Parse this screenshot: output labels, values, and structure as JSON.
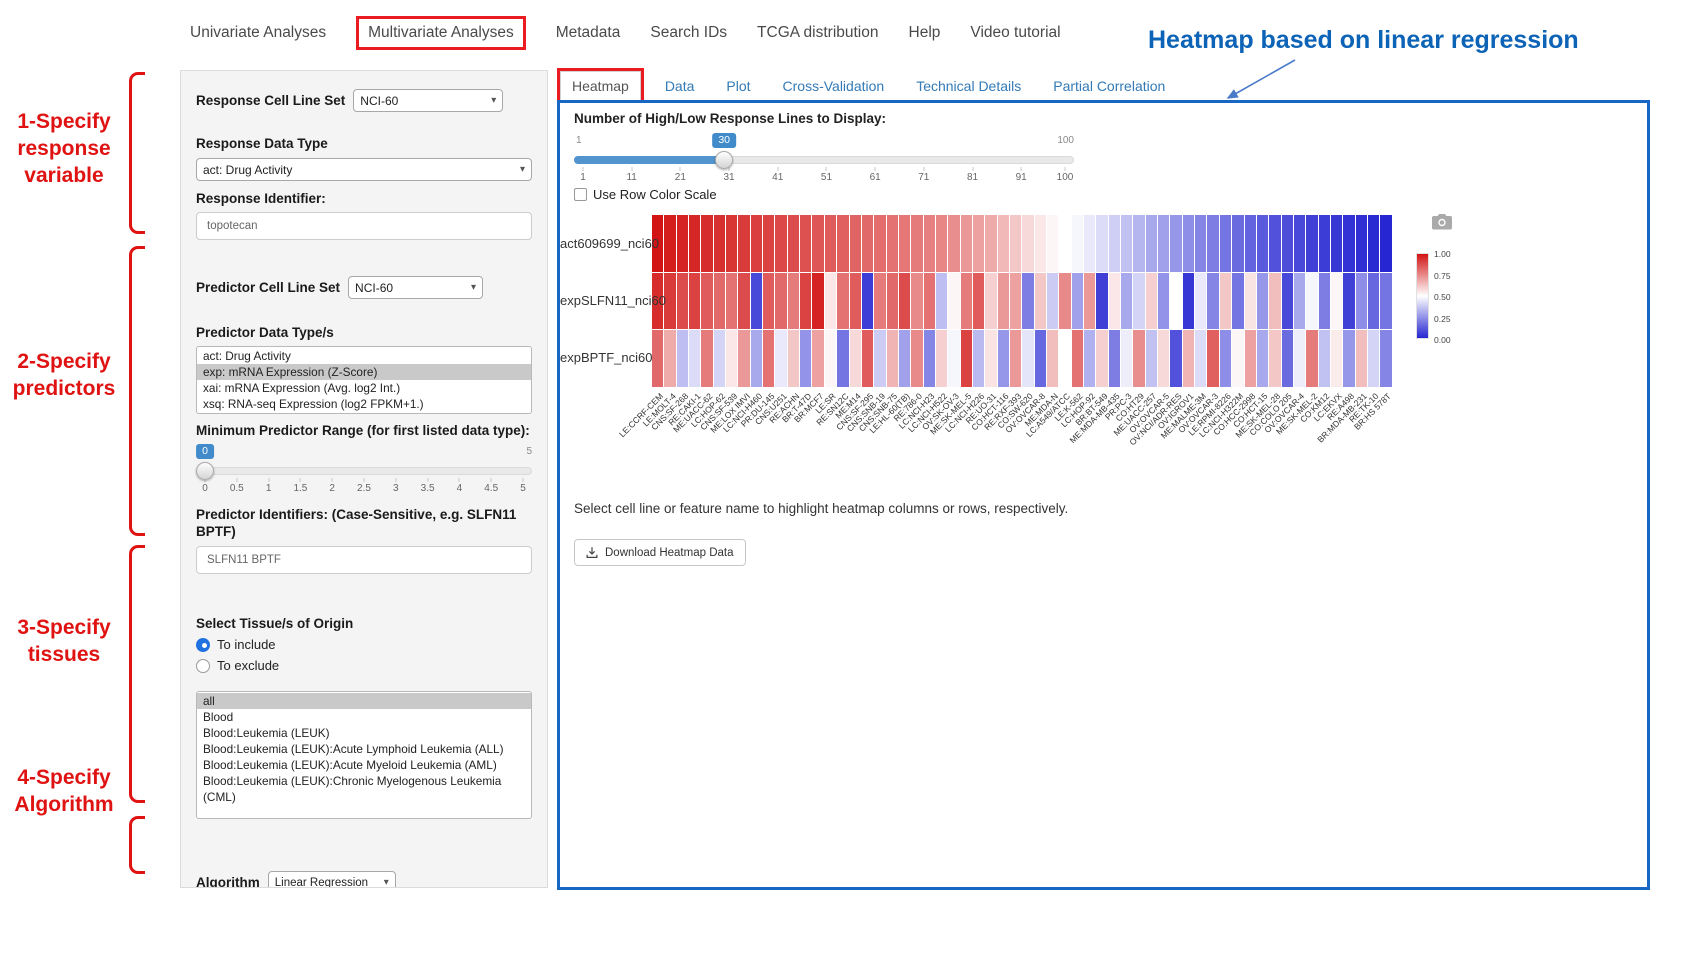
{
  "colors": {
    "panel_border_blue": "#1668c4",
    "annotation_red": "#e01313",
    "link_blue": "#337ab7",
    "slider_blue": "#428bca"
  },
  "nav": {
    "items": [
      {
        "label": "Univariate Analyses",
        "highlighted": false
      },
      {
        "label": "Multivariate Analyses",
        "highlighted": true
      },
      {
        "label": "Metadata",
        "highlighted": false
      },
      {
        "label": "Search IDs",
        "highlighted": false
      },
      {
        "label": "TCGA distribution",
        "highlighted": false
      },
      {
        "label": "Help",
        "highlighted": false
      },
      {
        "label": "Video tutorial",
        "highlighted": false
      }
    ]
  },
  "annotations": {
    "heading": "Heatmap based on linear regression",
    "steps": [
      {
        "lines": [
          "1-Specify",
          "response",
          "variable"
        ]
      },
      {
        "lines": [
          "2-Specify",
          "predictors"
        ]
      },
      {
        "lines": [
          "3-Specify",
          "tissues"
        ]
      },
      {
        "lines": [
          "4-Specify",
          "Algorithm"
        ]
      }
    ]
  },
  "form": {
    "response_cell_line_set": {
      "label": "Response Cell Line Set",
      "value": "NCI-60"
    },
    "response_data_type": {
      "label": "Response Data Type",
      "value": "act: Drug Activity"
    },
    "response_identifier": {
      "label": "Response Identifier:",
      "value": "topotecan"
    },
    "predictor_cell_line_set": {
      "label": "Predictor Cell Line Set",
      "value": "NCI-60"
    },
    "predictor_data_types": {
      "label": "Predictor Data Type/s",
      "options": [
        "act: Drug Activity",
        "exp: mRNA Expression (Z-Score)",
        "xai: mRNA Expression (Avg. log2 Int.)",
        "xsq: RNA-seq Expression (log2 FPKM+1.)"
      ],
      "selected_index": 1
    },
    "min_predictor_range": {
      "label": "Minimum Predictor Range (for first listed data type):",
      "value": 0,
      "min": 0,
      "max": 5,
      "bubble": "0",
      "max_label": "5",
      "ticks": [
        "0",
        "0.5",
        "1",
        "1.5",
        "2",
        "2.5",
        "3",
        "3.5",
        "4",
        "4.5",
        "5"
      ]
    },
    "predictor_identifiers": {
      "label": "Predictor Identifiers: (Case-Sensitive, e.g. SLFN11 BPTF)",
      "value": "SLFN11 BPTF"
    },
    "tissue_origin": {
      "label": "Select Tissue/s of Origin",
      "radio_include": "To include",
      "radio_exclude": "To exclude",
      "selected_radio": "include",
      "options": [
        "all",
        "Blood",
        "Blood:Leukemia (LEUK)",
        "Blood:Leukemia (LEUK):Acute Lymphoid Leukemia (ALL)",
        "Blood:Leukemia (LEUK):Acute Myeloid Leukemia (AML)",
        "Blood:Leukemia (LEUK):Chronic Myelogenous Leukemia (CML)"
      ],
      "selected_index": 0
    },
    "algorithm": {
      "label": "Algorithm",
      "value": "Linear Regression"
    }
  },
  "tabs": {
    "items": [
      "Heatmap",
      "Data",
      "Plot",
      "Cross-Validation",
      "Technical Details",
      "Partial Correlation"
    ],
    "active": "Heatmap"
  },
  "panel": {
    "slider_label": "Number of High/Low Response Lines to Display:",
    "lines_slider": {
      "value": 30,
      "min": 1,
      "max": 100,
      "bubble": "30",
      "min_label": "1",
      "max_label": "100",
      "ticks": [
        "1",
        "11",
        "21",
        "31",
        "41",
        "51",
        "61",
        "71",
        "81",
        "91",
        "100"
      ]
    },
    "row_scale_checkbox": "Use Row Color Scale",
    "hint": "Select cell line or feature name to highlight heatmap columns or rows, respectively.",
    "download_button": "Download Heatmap Data",
    "legend_ticks": [
      "1.00",
      "0.75",
      "0.50",
      "0.25",
      "0.00"
    ]
  },
  "chart_data": {
    "type": "heatmap",
    "rows": [
      "act609699_nci60",
      "expSLFN11_nci60",
      "expBPTF_nci60"
    ],
    "columns": [
      "LE:CCRF-CEM",
      "LE:MOLT-4",
      "CNS:SF-268",
      "RE:CAKI-1",
      "ME:UACC-62",
      "LC:HOP-62",
      "CNS:SF-539",
      "ME:LOX IMVI",
      "LC:NCI-H460",
      "PR:DU-145",
      "CNS:U251",
      "RE:ACHN",
      "BR:T-47D",
      "BR:MCF7",
      "LE:SR",
      "RE:SN12C",
      "ME:M14",
      "CNS:SF-295",
      "CNS:SNB-19",
      "CNS:SNB-75",
      "LE:HL-60(TB)",
      "RE:786-0",
      "LC:NCI-H23",
      "LC:NCI-H522",
      "OV:SK-OV-3",
      "ME:SK-MEL-5",
      "LC:NCI-H226",
      "RE:UO-31",
      "CO:HCT-116",
      "RE:RXF-393",
      "CO:SW-620",
      "OV:OVCAR-8",
      "ME:MDA-N",
      "LC:A549/ATCC",
      "LE:K-562",
      "LC:HOP-92",
      "BR:BT-549",
      "ME:MDA-MB-435",
      "PR:PC-3",
      "CO:HT29",
      "ME:UACC-257",
      "OV:OVCAR-5",
      "OV:NCI/ADR-RES",
      "OV:IGROV1",
      "ME:MALME-3M",
      "OV:OVCAR-3",
      "LE:RPMI-8226",
      "LC:NCI-H322M",
      "CO:HCC-2998",
      "CO:HCT-15",
      "ME:SK-MEL-28",
      "CO:COLO 205",
      "OV:OVCAR-4",
      "ME:SK-MEL-2",
      "CO:KM12",
      "LC:EKVX",
      "RE:A498",
      "BR:MDA-MB-231",
      "RE:TK-10",
      "BR:HS 578T"
    ],
    "series": [
      {
        "name": "act609699_nci60",
        "values": [
          1.0,
          0.98,
          0.97,
          0.96,
          0.95,
          0.94,
          0.93,
          0.92,
          0.91,
          0.9,
          0.89,
          0.88,
          0.87,
          0.86,
          0.85,
          0.84,
          0.83,
          0.82,
          0.81,
          0.8,
          0.79,
          0.78,
          0.77,
          0.76,
          0.74,
          0.72,
          0.7,
          0.68,
          0.65,
          0.62,
          0.58,
          0.55,
          0.52,
          0.5,
          0.48,
          0.45,
          0.42,
          0.39,
          0.36,
          0.33,
          0.3,
          0.28,
          0.26,
          0.24,
          0.22,
          0.2,
          0.18,
          0.16,
          0.14,
          0.12,
          0.1,
          0.09,
          0.08,
          0.06,
          0.05,
          0.04,
          0.03,
          0.02,
          0.01,
          0.0
        ]
      },
      {
        "name": "expSLFN11_nci60",
        "values": [
          0.95,
          0.92,
          0.88,
          0.9,
          0.85,
          0.82,
          0.8,
          0.88,
          0.08,
          0.85,
          0.82,
          0.78,
          0.9,
          0.97,
          0.55,
          0.8,
          0.85,
          0.05,
          0.78,
          0.82,
          0.88,
          0.75,
          0.8,
          0.35,
          0.52,
          0.78,
          0.85,
          0.6,
          0.72,
          0.7,
          0.2,
          0.62,
          0.38,
          0.75,
          0.28,
          0.72,
          0.06,
          0.55,
          0.3,
          0.4,
          0.6,
          0.25,
          0.5,
          0.04,
          0.45,
          0.22,
          0.62,
          0.18,
          0.56,
          0.26,
          0.64,
          0.08,
          0.3,
          0.48,
          0.2,
          0.52,
          0.06,
          0.24,
          0.15,
          0.18
        ]
      },
      {
        "name": "expBPTF_nci60",
        "values": [
          0.82,
          0.68,
          0.35,
          0.42,
          0.78,
          0.4,
          0.55,
          0.72,
          0.3,
          0.8,
          0.45,
          0.62,
          0.25,
          0.7,
          0.52,
          0.18,
          0.58,
          0.85,
          0.38,
          0.66,
          0.28,
          0.75,
          0.22,
          0.6,
          0.48,
          0.9,
          0.34,
          0.56,
          0.26,
          0.72,
          0.44,
          0.15,
          0.64,
          0.5,
          0.8,
          0.32,
          0.6,
          0.2,
          0.46,
          0.74,
          0.36,
          0.58,
          0.1,
          0.66,
          0.42,
          0.84,
          0.24,
          0.52,
          0.7,
          0.3,
          0.62,
          0.16,
          0.46,
          0.78,
          0.36,
          0.54,
          0.26,
          0.64,
          0.4,
          0.22
        ]
      }
    ],
    "colorscale": {
      "min": 0,
      "max": 1,
      "high_color": "#d21414",
      "mid_color": "#ffffff",
      "low_color": "#2626d2"
    },
    "legend_labels": [
      "1.00",
      "0.75",
      "0.50",
      "0.25",
      "0.00"
    ]
  }
}
